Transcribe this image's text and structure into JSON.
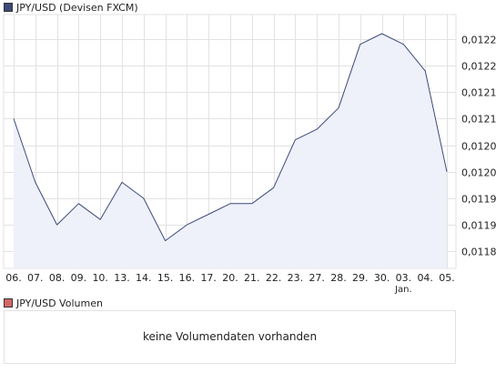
{
  "price_legend": {
    "label": "JPY/USD (Devisen FXCM)",
    "color": "#3d4a78"
  },
  "volume_legend": {
    "label": "JPY/USD Volumen",
    "color": "#d46868"
  },
  "volume_panel": {
    "message": "keine Volumendaten vorhanden"
  },
  "chart_data": {
    "type": "area",
    "title": "",
    "xlabel": "",
    "ylabel": "",
    "categories": [
      "06.",
      "07.",
      "08.",
      "09.",
      "10.",
      "13.",
      "14.",
      "15.",
      "16.",
      "17.",
      "20.",
      "21.",
      "22.",
      "23.",
      "27.",
      "28.",
      "29.",
      "30.",
      "03.",
      "04.",
      "05."
    ],
    "x_sublabels": [
      {
        "index": 18,
        "text": "Jan."
      }
    ],
    "series": [
      {
        "values": [
          0.0121,
          0.01198,
          0.0119,
          0.01194,
          0.01191,
          0.01198,
          0.01195,
          0.01187,
          0.0119,
          0.01192,
          0.01194,
          0.01194,
          0.01197,
          0.01206,
          0.01208,
          0.01212,
          0.01224,
          0.01226,
          0.01224,
          0.01219,
          0.012
        ]
      }
    ],
    "yticks": [
      "0,01185",
      "0,01190",
      "0,01195",
      "0,01200",
      "0,01205",
      "0,01210",
      "0,01215",
      "0,01220",
      "0,01225"
    ],
    "ytick_values": [
      0.01185,
      0.0119,
      0.01195,
      0.012,
      0.01205,
      0.0121,
      0.01215,
      0.0122,
      0.01225
    ],
    "ylim": [
      0.011818,
      0.012296
    ],
    "y_axis_position": "right",
    "grid": true,
    "line_color": "#3d4a78",
    "fill_color": "#eef0fa",
    "grid_color": "#e2e2e2"
  }
}
